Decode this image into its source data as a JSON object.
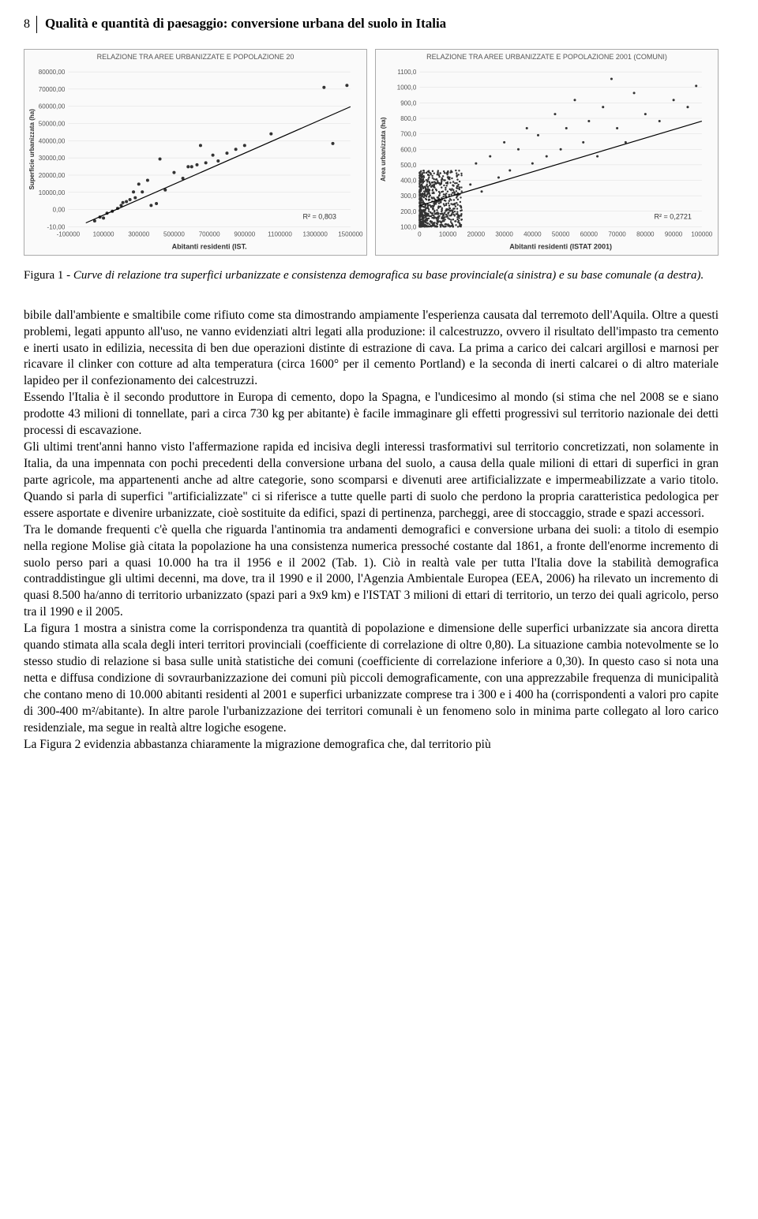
{
  "page_number": "8",
  "title": "Qualità e quantità di paesaggio: conversione urbana del suolo in Italia",
  "chart_left": {
    "type": "scatter",
    "title": "RELAZIONE TRA AREE URBANIZZATE E POPOLAZIONE 20",
    "xlabel": "Abitanti residenti (IST.",
    "ylabel": "Superficie urbanizzata (ha)",
    "xlim": [
      -100000,
      1500000
    ],
    "ylim": [
      -10,
      80000
    ],
    "xticks": [
      "-100000",
      "100000",
      "300000",
      "500000",
      "700000",
      "900000",
      "1100000",
      "1300000",
      "1500000"
    ],
    "yticks": [
      "-10,00",
      "0,00",
      "10000,00",
      "20000,00",
      "30000,00",
      "40000,00",
      "50000,00",
      "60000,00",
      "70000,00",
      "80000,00"
    ],
    "r_squared": "R² = 0,803",
    "point_color": "#333333",
    "trend_color": "#000000",
    "grid_color": "#dddddd",
    "background_color": "#fafafa",
    "label_fontsize": 8,
    "points": [
      [
        50000,
        3000
      ],
      [
        80000,
        5000
      ],
      [
        100000,
        4500
      ],
      [
        120000,
        7000
      ],
      [
        150000,
        8000
      ],
      [
        180000,
        9500
      ],
      [
        200000,
        11000
      ],
      [
        210000,
        12500
      ],
      [
        230000,
        13000
      ],
      [
        250000,
        14000
      ],
      [
        270000,
        18000
      ],
      [
        280000,
        15000
      ],
      [
        300000,
        22000
      ],
      [
        320000,
        18000
      ],
      [
        350000,
        24000
      ],
      [
        370000,
        11000
      ],
      [
        400000,
        12000
      ],
      [
        420000,
        35000
      ],
      [
        450000,
        19000
      ],
      [
        500000,
        28000
      ],
      [
        550000,
        25000
      ],
      [
        580000,
        31000
      ],
      [
        600000,
        31000
      ],
      [
        630000,
        32000
      ],
      [
        650000,
        42000
      ],
      [
        680000,
        33000
      ],
      [
        720000,
        37000
      ],
      [
        750000,
        34000
      ],
      [
        800000,
        38000
      ],
      [
        850000,
        40000
      ],
      [
        900000,
        42000
      ],
      [
        1050000,
        48000
      ],
      [
        1350000,
        72000
      ],
      [
        1400000,
        43000
      ],
      [
        1480000,
        73000
      ]
    ],
    "trend_line": [
      [
        0,
        2000
      ],
      [
        1500000,
        62000
      ]
    ]
  },
  "chart_right": {
    "type": "scatter",
    "title": "RELAZIONE TRA AREE URBANIZZATE E POPOLAZIONE 2001 (COMUNI)",
    "xlabel": "Abitanti residenti (ISTAT 2001)",
    "ylabel": "Area urbanizzata (ha)",
    "xlim": [
      0,
      100000
    ],
    "ylim": [
      0,
      1100
    ],
    "xticks": [
      "0",
      "10000",
      "20000",
      "30000",
      "40000",
      "50000",
      "60000",
      "70000",
      "80000",
      "90000",
      "100000"
    ],
    "yticks": [
      "100,0",
      "200,0",
      "300,0",
      "400,0",
      "500,0",
      "600,0",
      "700,0",
      "800,0",
      "900,0",
      "1000,0",
      "1100,0"
    ],
    "r_squared": "R² = 0,2721",
    "point_color": "#333333",
    "trend_color": "#000000",
    "grid_color": "#dddddd",
    "background_color": "#fafafa",
    "label_fontsize": 8,
    "dense_cluster": {
      "x_range": [
        0,
        15000
      ],
      "y_range": [
        0,
        400
      ],
      "count": 800
    },
    "sparse_points": [
      [
        18000,
        300
      ],
      [
        20000,
        450
      ],
      [
        22000,
        250
      ],
      [
        25000,
        500
      ],
      [
        28000,
        350
      ],
      [
        30000,
        600
      ],
      [
        32000,
        400
      ],
      [
        35000,
        550
      ],
      [
        38000,
        700
      ],
      [
        40000,
        450
      ],
      [
        42000,
        650
      ],
      [
        45000,
        500
      ],
      [
        48000,
        800
      ],
      [
        50000,
        550
      ],
      [
        52000,
        700
      ],
      [
        55000,
        900
      ],
      [
        58000,
        600
      ],
      [
        60000,
        750
      ],
      [
        63000,
        500
      ],
      [
        65000,
        850
      ],
      [
        68000,
        1050
      ],
      [
        70000,
        700
      ],
      [
        73000,
        600
      ],
      [
        76000,
        950
      ],
      [
        80000,
        800
      ],
      [
        85000,
        750
      ],
      [
        90000,
        900
      ],
      [
        95000,
        850
      ],
      [
        98000,
        1000
      ]
    ],
    "trend_line": [
      [
        0,
        150
      ],
      [
        100000,
        750
      ]
    ]
  },
  "figure_caption": {
    "label": "Figura 1 - ",
    "text": "Curve di relazione tra superfici urbanizzate e consistenza demografica su base provinciale(a sinistra) e su base comunale (a destra)."
  },
  "paragraphs": [
    "bibile dall'ambiente e smaltibile come rifiuto come sta dimostrando ampiamente l'esperienza causata dal terremoto dell'Aquila. Oltre a questi problemi, legati appunto all'uso, ne vanno evidenziati altri legati alla produzione: il calcestruzzo, ovvero il risultato dell'impasto tra cemento e inerti usato in edilizia, necessita di ben due operazioni distinte di estrazione di cava. La prima a carico dei calcari argillosi e marnosi per ricavare il clinker con cotture ad alta temperatura (circa 1600° per il cemento Portland) e la seconda di inerti calcarei o di altro materiale lapideo per il confezionamento dei calcestruzzi.",
    "Essendo l'Italia è il secondo produttore in Europa di cemento, dopo la Spagna, e l'undicesimo al mondo (si stima che nel 2008 se e siano prodotte 43 milioni di tonnellate, pari a circa 730 kg per abitante) è facile immaginare gli effetti progressivi sul territorio nazionale dei detti processi di escavazione.",
    "Gli ultimi trent'anni hanno visto l'affermazione rapida ed incisiva degli interessi trasformativi sul territorio concretizzati, non solamente in Italia, da una impennata con pochi precedenti della conversione urbana del suolo, a causa della quale milioni di ettari di superfici in gran parte agricole, ma appartenenti anche ad altre categorie, sono scomparsi e divenuti aree artificializzate e impermeabilizzate a vario titolo. Quando si parla di superfici \"artificializzate\" ci si riferisce a tutte quelle parti di suolo che perdono la propria caratteristica pedologica per essere asportate e divenire urbanizzate, cioè sostituite da edifici, spazi di pertinenza, parcheggi, aree di stoccaggio, strade e spazi accessori.",
    "Tra le domande frequenti c'è quella che riguarda l'antinomia tra andamenti demografici e conversione urbana dei suoli: a titolo di esempio nella regione Molise già citata la popolazione ha una consistenza numerica pressoché costante dal 1861, a fronte dell'enorme incremento di suolo perso pari a quasi 10.000 ha tra il 1956 e il 2002 (Tab. 1). Ciò in realtà vale per tutta l'Italia dove la stabilità demografica contraddistingue gli ultimi decenni, ma dove, tra il 1990 e il 2000, l'Agenzia Ambientale Europea (EEA, 2006) ha rilevato un incremento di quasi 8.500 ha/anno di territorio urbanizzato (spazi pari a 9x9 km) e l'ISTAT 3 milioni di ettari di territorio, un terzo dei quali agricolo, perso tra il 1990 e il 2005.",
    "La figura 1 mostra a sinistra come la corrispondenza tra quantità di popolazione e dimensione delle superfici urbanizzate sia ancora diretta quando stimata alla scala degli interi territori provinciali (coefficiente di correlazione di oltre 0,80). La situazione cambia notevolmente se lo stesso studio di relazione si basa sulle unità statistiche dei comuni (coefficiente di correlazione inferiore a 0,30). In questo caso si nota una netta e diffusa condizione di sovraurbanizzazione dei comuni più piccoli demograficamente, con una apprezzabile frequenza di municipalità che contano meno di 10.000 abitanti residenti al 2001 e superfici urbanizzate comprese tra i 300 e i 400 ha (corrispondenti a valori pro capite di 300-400 m²/abitante). In altre parole l'urbanizzazione dei territori comunali è un fenomeno solo in minima parte collegato al loro carico residenziale, ma segue in realtà altre logiche esogene.",
    "La Figura 2 evidenzia abbastanza chiaramente la migrazione demografica che, dal territorio più"
  ]
}
